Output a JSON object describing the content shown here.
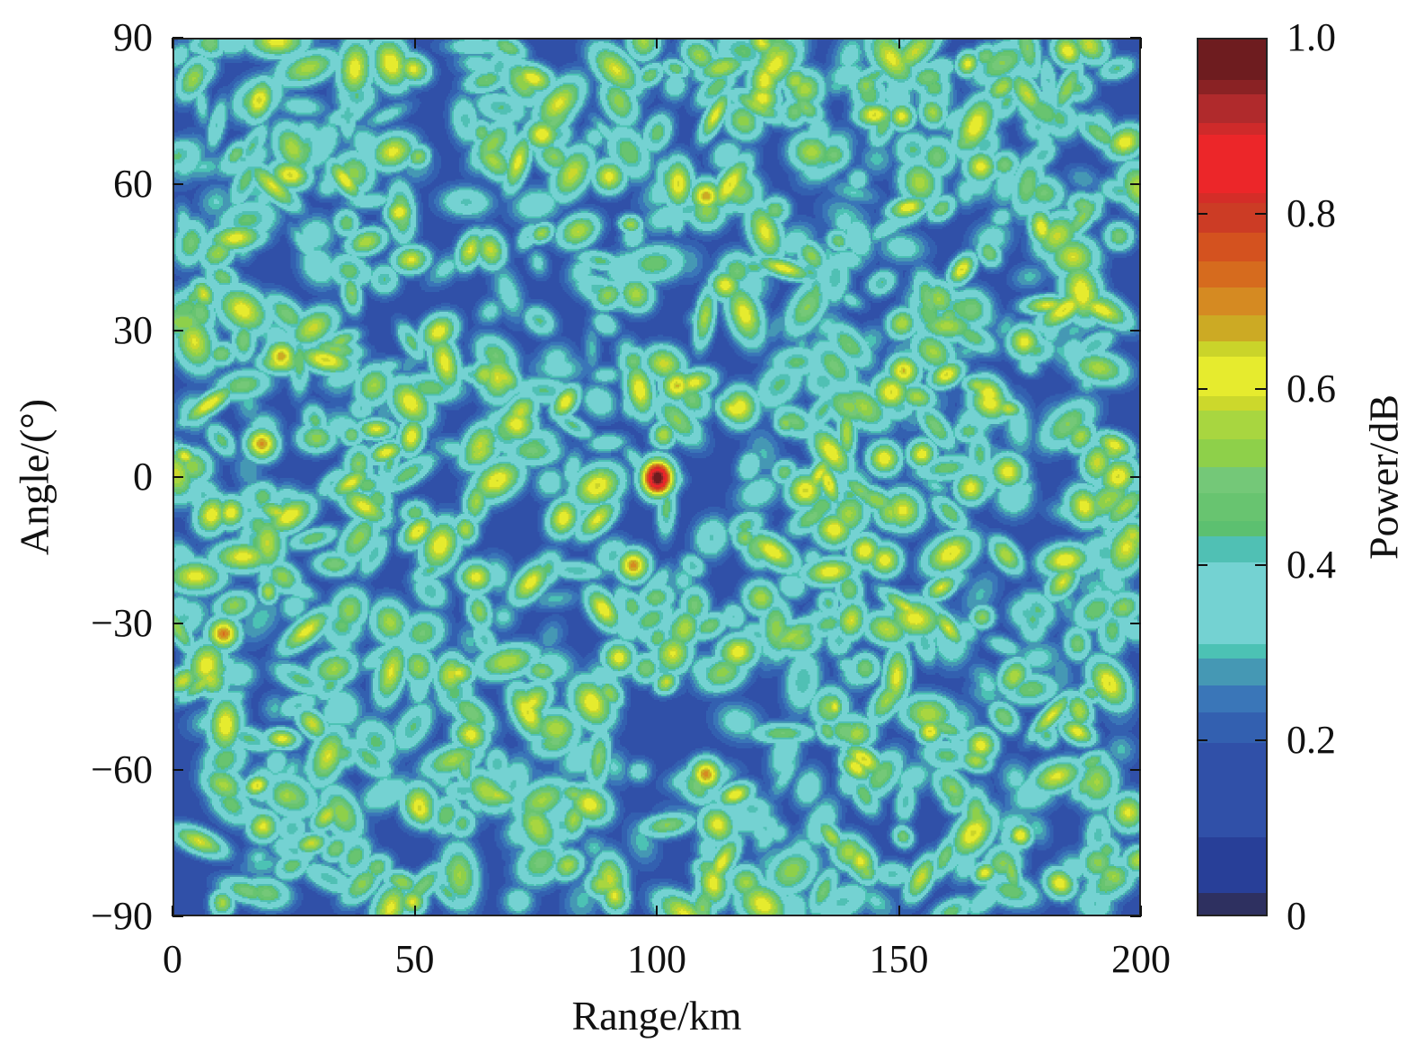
{
  "chart_data": {
    "type": "heatmap",
    "title": "",
    "xlabel": "Range/km",
    "ylabel": "Angle/(°)",
    "colorbar_label": "Power/dB",
    "xlim": [
      0,
      200
    ],
    "ylim": [
      -90,
      90
    ],
    "clim": [
      0,
      1.0
    ],
    "xticks": [
      0,
      50,
      100,
      150,
      200
    ],
    "xtick_labels": [
      "0",
      "50",
      "100",
      "150",
      "200"
    ],
    "yticks": [
      90,
      60,
      30,
      0,
      -30,
      -60,
      -90
    ],
    "ytick_labels": [
      "90",
      "60",
      "30",
      "0",
      "−30",
      "−60",
      "−90"
    ],
    "cticks": [
      0,
      0.2,
      0.4,
      0.6,
      0.8,
      1.0
    ],
    "ctick_labels": [
      "0",
      "0.2",
      "0.4",
      "0.6",
      "0.8",
      "1.0"
    ],
    "background_level": 0.15,
    "main_target": {
      "range": 100,
      "angle": 0,
      "power": 1.0
    },
    "sidelobe_peaks": [
      {
        "range": 18,
        "angle": 7,
        "power": 0.7
      },
      {
        "range": 22,
        "angle": 25,
        "power": 0.68
      },
      {
        "range": 10,
        "angle": -32,
        "power": 0.72
      },
      {
        "range": 95,
        "angle": -18,
        "power": 0.7
      },
      {
        "range": 104,
        "angle": 19,
        "power": 0.66
      },
      {
        "range": 110,
        "angle": 58,
        "power": 0.68
      },
      {
        "range": 110,
        "angle": -61,
        "power": 0.7
      },
      {
        "range": 151,
        "angle": 22,
        "power": 0.66
      },
      {
        "range": 147,
        "angle": 4,
        "power": 0.64
      },
      {
        "range": 143,
        "angle": -15,
        "power": 0.64
      },
      {
        "range": 90,
        "angle": 62,
        "power": 0.62
      },
      {
        "range": 167,
        "angle": 64,
        "power": 0.62
      },
      {
        "range": 92,
        "angle": -37,
        "power": 0.62
      },
      {
        "range": 176,
        "angle": 28,
        "power": 0.62
      },
      {
        "range": 165,
        "angle": -2,
        "power": 0.62
      },
      {
        "range": 167,
        "angle": -55,
        "power": 0.62
      }
    ],
    "colormap": [
      {
        "from": 0.0,
        "to": 0.029,
        "color": "#2e3060"
      },
      {
        "from": 0.029,
        "to": 0.093,
        "color": "#283f98"
      },
      {
        "from": 0.093,
        "to": 0.2,
        "color": "#3050a8"
      },
      {
        "from": 0.2,
        "to": 0.235,
        "color": "#3360b0"
      },
      {
        "from": 0.235,
        "to": 0.265,
        "color": "#3a76b8"
      },
      {
        "from": 0.265,
        "to": 0.296,
        "color": "#4598b4"
      },
      {
        "from": 0.296,
        "to": 0.312,
        "color": "#4cc2b4"
      },
      {
        "from": 0.312,
        "to": 0.405,
        "color": "#74d2d2"
      },
      {
        "from": 0.405,
        "to": 0.435,
        "color": "#50c0b4"
      },
      {
        "from": 0.435,
        "to": 0.452,
        "color": "#5cc070"
      },
      {
        "from": 0.452,
        "to": 0.484,
        "color": "#68c470"
      },
      {
        "from": 0.484,
        "to": 0.514,
        "color": "#74c878"
      },
      {
        "from": 0.514,
        "to": 0.545,
        "color": "#8ed04a"
      },
      {
        "from": 0.545,
        "to": 0.578,
        "color": "#a8d640"
      },
      {
        "from": 0.578,
        "to": 0.595,
        "color": "#ccd82c"
      },
      {
        "from": 0.595,
        "to": 0.64,
        "color": "#e6eb2e"
      },
      {
        "from": 0.64,
        "to": 0.657,
        "color": "#cad42a"
      },
      {
        "from": 0.657,
        "to": 0.687,
        "color": "#ccaa24"
      },
      {
        "from": 0.687,
        "to": 0.718,
        "color": "#d58a22"
      },
      {
        "from": 0.718,
        "to": 0.748,
        "color": "#d66b1e"
      },
      {
        "from": 0.748,
        "to": 0.781,
        "color": "#d4521f"
      },
      {
        "from": 0.781,
        "to": 0.814,
        "color": "#cc3c25"
      },
      {
        "from": 0.814,
        "to": 0.826,
        "color": "#d42d28"
      },
      {
        "from": 0.826,
        "to": 0.892,
        "color": "#ec2629"
      },
      {
        "from": 0.892,
        "to": 0.905,
        "color": "#cf2a2a"
      },
      {
        "from": 0.905,
        "to": 0.938,
        "color": "#b02a2c"
      },
      {
        "from": 0.938,
        "to": 0.954,
        "color": "#8a2224"
      },
      {
        "from": 0.954,
        "to": 1.0,
        "color": "#6e1c1f"
      }
    ]
  }
}
